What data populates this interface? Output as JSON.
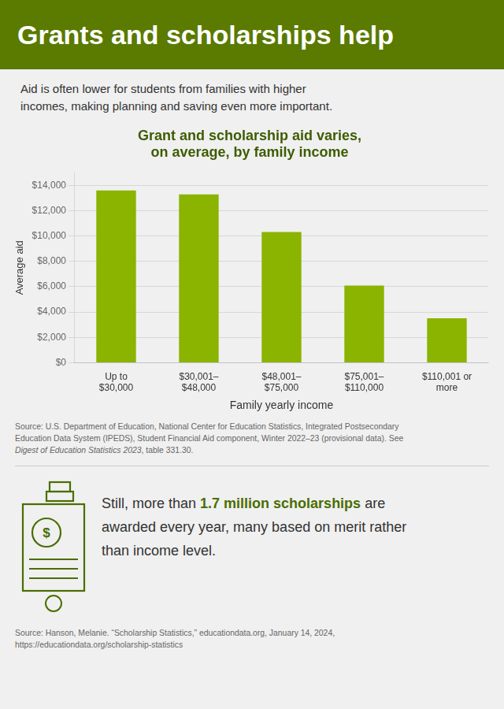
{
  "chart_data": {
    "type": "bar",
    "title": [
      "Grant and scholarship aid varies,",
      "on average, by family income"
    ],
    "x_label": "Family yearly income",
    "y_label": "Average aid",
    "categories": [
      "Up to\n$30,000",
      "$30,001–\n$48,000",
      "$48,001–\n$75,000",
      "$75,001–\n$110,000",
      "$110,001 or\nmore"
    ],
    "values": [
      13591,
      13289,
      10314,
      6086,
      3504
    ],
    "color": "#8ab400",
    "ylim": [
      0,
      15000
    ],
    "yticks": [
      {
        "value": 0,
        "label": "$0"
      },
      {
        "value": 2000,
        "label": "$2,000"
      },
      {
        "value": 4000,
        "label": "$4,000"
      },
      {
        "value": 6000,
        "label": "$6,000"
      },
      {
        "value": 8000,
        "label": "$8,000"
      },
      {
        "value": 10000,
        "label": "$10,000"
      },
      {
        "value": 12000,
        "label": "$12,000"
      },
      {
        "value": 14000,
        "label": "$14,000"
      }
    ],
    "grid": true,
    "annotations": [
      "Grants and scholarships help",
      "Aid is often lower for students from families with higher",
      "incomes, making planning and saving even more important.",
      "Source: U.S. Department of Education, National Center for Education Statistics, Integrated Postsecondary",
      "Education Data System (IPEDS), Student Financial Aid component, Winter 2022–23 (provisional data). See",
      [
        "Digest of Education Statistics 2023",
        ", table 331.30."
      ],
      "$",
      [
        "Still, more than ",
        "1.7 million scholarships",
        " are"
      ],
      "awarded every year, many based on merit rather",
      "than income level.",
      "Source: Hanson, Melanie. “Scholarship Statistics,” educationdata.org, January 14, 2024,",
      "https://educationdata.org/scholarship-statistics"
    ]
  }
}
